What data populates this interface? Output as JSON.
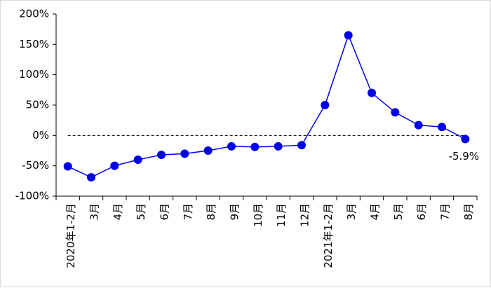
{
  "chart_data": {
    "type": "line",
    "categories": [
      "2020年1-2月",
      "3月",
      "4月",
      "5月",
      "6月",
      "7月",
      "8月",
      "9月",
      "10月",
      "11月",
      "12月",
      "2021年1-2月",
      "3月",
      "4月",
      "5月",
      "6月",
      "7月",
      "8月"
    ],
    "series": [
      {
        "color": "#0000e6",
        "values": [
          -51,
          -69,
          -50,
          -40,
          -32,
          -30,
          -25,
          -18,
          -19,
          -18,
          -16,
          50,
          165,
          70,
          38,
          17,
          14,
          -5.9
        ],
        "value_labels": [
          null,
          null,
          null,
          null,
          null,
          null,
          null,
          null,
          null,
          null,
          null,
          null,
          null,
          null,
          null,
          null,
          null,
          "-5.9%"
        ]
      }
    ],
    "ylim": [
      -100,
      200
    ],
    "yticks": [
      {
        "value": -100,
        "label": "-100%"
      },
      {
        "value": -50,
        "label": "-50%"
      },
      {
        "value": 0,
        "label": "0%"
      },
      {
        "value": 50,
        "label": "50%"
      },
      {
        "value": 100,
        "label": "100%"
      },
      {
        "value": 150,
        "label": "150%"
      },
      {
        "value": 200,
        "label": "200%"
      }
    ]
  }
}
